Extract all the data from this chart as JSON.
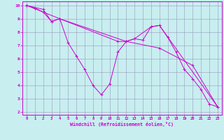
{
  "xlabel": "Windchill (Refroidissement éolien,°C)",
  "bg_color": "#c8eef0",
  "line_color": "#cc00cc",
  "grid_color": "#9999bb",
  "xlim": [
    0,
    23
  ],
  "ylim": [
    2,
    10
  ],
  "yticks": [
    2,
    3,
    4,
    5,
    6,
    7,
    8,
    9,
    10
  ],
  "xticks": [
    0,
    1,
    2,
    3,
    4,
    5,
    6,
    7,
    8,
    9,
    10,
    11,
    12,
    13,
    14,
    15,
    16,
    17,
    18,
    19,
    20,
    21,
    22,
    23
  ],
  "series1": [
    [
      0,
      10.0
    ],
    [
      1,
      9.8
    ],
    [
      2,
      9.5
    ],
    [
      3,
      8.8
    ],
    [
      4,
      9.0
    ],
    [
      5,
      7.2
    ],
    [
      6,
      6.2
    ],
    [
      7,
      5.2
    ],
    [
      8,
      4.0
    ],
    [
      9,
      3.3
    ],
    [
      10,
      4.1
    ],
    [
      11,
      6.5
    ],
    [
      12,
      7.3
    ],
    [
      13,
      7.5
    ],
    [
      14,
      7.4
    ],
    [
      15,
      8.4
    ],
    [
      16,
      8.5
    ],
    [
      17,
      7.6
    ],
    [
      18,
      6.5
    ],
    [
      19,
      5.2
    ],
    [
      20,
      4.5
    ],
    [
      21,
      3.7
    ],
    [
      22,
      2.6
    ],
    [
      23,
      2.4
    ]
  ],
  "series2": [
    [
      0,
      10.0
    ],
    [
      2,
      9.7
    ],
    [
      3,
      8.8
    ],
    [
      4,
      9.0
    ],
    [
      11,
      7.3
    ],
    [
      12,
      7.3
    ],
    [
      13,
      7.5
    ],
    [
      15,
      8.4
    ],
    [
      16,
      8.5
    ],
    [
      23,
      2.4
    ]
  ],
  "series3": [
    [
      0,
      10.0
    ],
    [
      4,
      9.0
    ],
    [
      12,
      7.3
    ],
    [
      16,
      6.8
    ],
    [
      20,
      5.5
    ],
    [
      23,
      2.4
    ]
  ]
}
